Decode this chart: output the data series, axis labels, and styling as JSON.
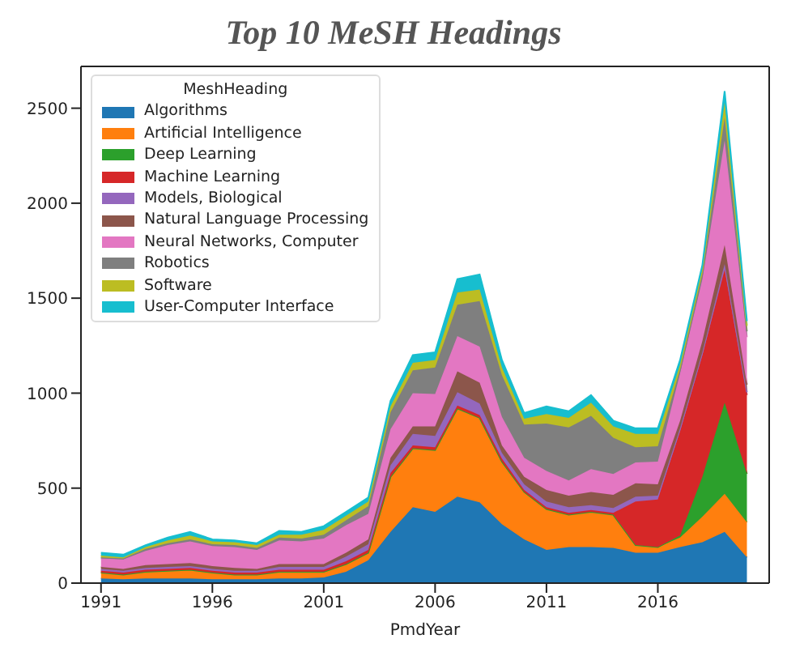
{
  "chart_data": {
    "type": "area",
    "title": "Top 10 MeSH Headings",
    "xlabel": "PmdYear",
    "legend_title": "MeshHeading",
    "legend": "top left",
    "stacked": true,
    "grid": false,
    "x": [
      1991,
      1992,
      1993,
      1994,
      1995,
      1996,
      1997,
      1998,
      1999,
      2000,
      2001,
      2002,
      2003,
      2004,
      2005,
      2006,
      2007,
      2008,
      2009,
      2010,
      2011,
      2012,
      2013,
      2014,
      2015,
      2016,
      2017,
      2018,
      2019,
      2020
    ],
    "xlim": [
      1990.1,
      2021
    ],
    "xticks": [
      1991,
      1996,
      2001,
      2006,
      2011,
      2016
    ],
    "ylim": [
      0,
      2720
    ],
    "yticks": [
      0,
      500,
      1000,
      1500,
      2000,
      2500
    ],
    "series": [
      {
        "name": "Algorithms",
        "color": "#1f77b4",
        "values": [
          25,
          20,
          25,
          25,
          25,
          20,
          20,
          20,
          25,
          25,
          30,
          60,
          120,
          270,
          400,
          375,
          455,
          425,
          310,
          230,
          175,
          190,
          190,
          185,
          160,
          160,
          190,
          215,
          270,
          135
        ]
      },
      {
        "name": "Artificial Intelligence",
        "color": "#ff7f0e",
        "values": [
          30,
          25,
          35,
          40,
          45,
          35,
          25,
          25,
          35,
          35,
          30,
          40,
          40,
          290,
          310,
          325,
          465,
          445,
          330,
          250,
          215,
          170,
          185,
          175,
          40,
          30,
          50,
          135,
          200,
          185
        ]
      },
      {
        "name": "Deep Learning",
        "color": "#2ca02c",
        "values": [
          0,
          0,
          0,
          0,
          0,
          0,
          0,
          0,
          0,
          0,
          0,
          0,
          0,
          0,
          0,
          0,
          0,
          0,
          0,
          0,
          0,
          0,
          0,
          0,
          0,
          0,
          10,
          210,
          480,
          255
        ]
      },
      {
        "name": "Machine Learning",
        "color": "#d62728",
        "values": [
          10,
          10,
          10,
          10,
          10,
          10,
          10,
          10,
          10,
          10,
          10,
          15,
          15,
          20,
          15,
          15,
          15,
          15,
          15,
          10,
          10,
          10,
          10,
          10,
          230,
          250,
          550,
          640,
          700,
          415
        ]
      },
      {
        "name": "Models, Biological",
        "color": "#9467bd",
        "values": [
          10,
          10,
          10,
          10,
          10,
          10,
          10,
          10,
          15,
          15,
          15,
          25,
          30,
          40,
          60,
          60,
          70,
          60,
          30,
          30,
          30,
          30,
          25,
          25,
          25,
          20,
          15,
          15,
          30,
          15
        ]
      },
      {
        "name": "Natural Language Processing",
        "color": "#8c564b",
        "values": [
          10,
          10,
          15,
          15,
          15,
          15,
          15,
          10,
          15,
          15,
          15,
          20,
          25,
          40,
          40,
          50,
          110,
          110,
          40,
          40,
          60,
          60,
          70,
          70,
          70,
          60,
          40,
          60,
          100,
          40
        ]
      },
      {
        "name": "Neural Networks, Computer",
        "color": "#e377c2",
        "values": [
          45,
          50,
          75,
          100,
          115,
          105,
          110,
          100,
          125,
          120,
          135,
          145,
          135,
          150,
          175,
          170,
          185,
          190,
          150,
          100,
          100,
          80,
          120,
          110,
          110,
          120,
          250,
          325,
          550,
          250
        ]
      },
      {
        "name": "Robotics",
        "color": "#7f7f7f",
        "values": [
          5,
          5,
          10,
          10,
          10,
          10,
          10,
          10,
          15,
          15,
          20,
          25,
          40,
          90,
          120,
          140,
          165,
          240,
          220,
          175,
          250,
          280,
          280,
          190,
          80,
          80,
          20,
          30,
          120,
          30
        ]
      },
      {
        "name": "Software",
        "color": "#bcbd22",
        "values": [
          10,
          5,
          10,
          15,
          20,
          15,
          15,
          15,
          15,
          20,
          25,
          25,
          25,
          30,
          40,
          40,
          65,
          60,
          40,
          30,
          50,
          50,
          70,
          60,
          70,
          65,
          25,
          25,
          80,
          30
        ]
      },
      {
        "name": "User-Computer Interface",
        "color": "#17becf",
        "values": [
          15,
          15,
          10,
          15,
          20,
          10,
          10,
          10,
          20,
          15,
          20,
          20,
          20,
          30,
          40,
          40,
          70,
          80,
          40,
          30,
          40,
          35,
          40,
          30,
          30,
          30,
          25,
          20,
          60,
          25
        ]
      }
    ]
  }
}
